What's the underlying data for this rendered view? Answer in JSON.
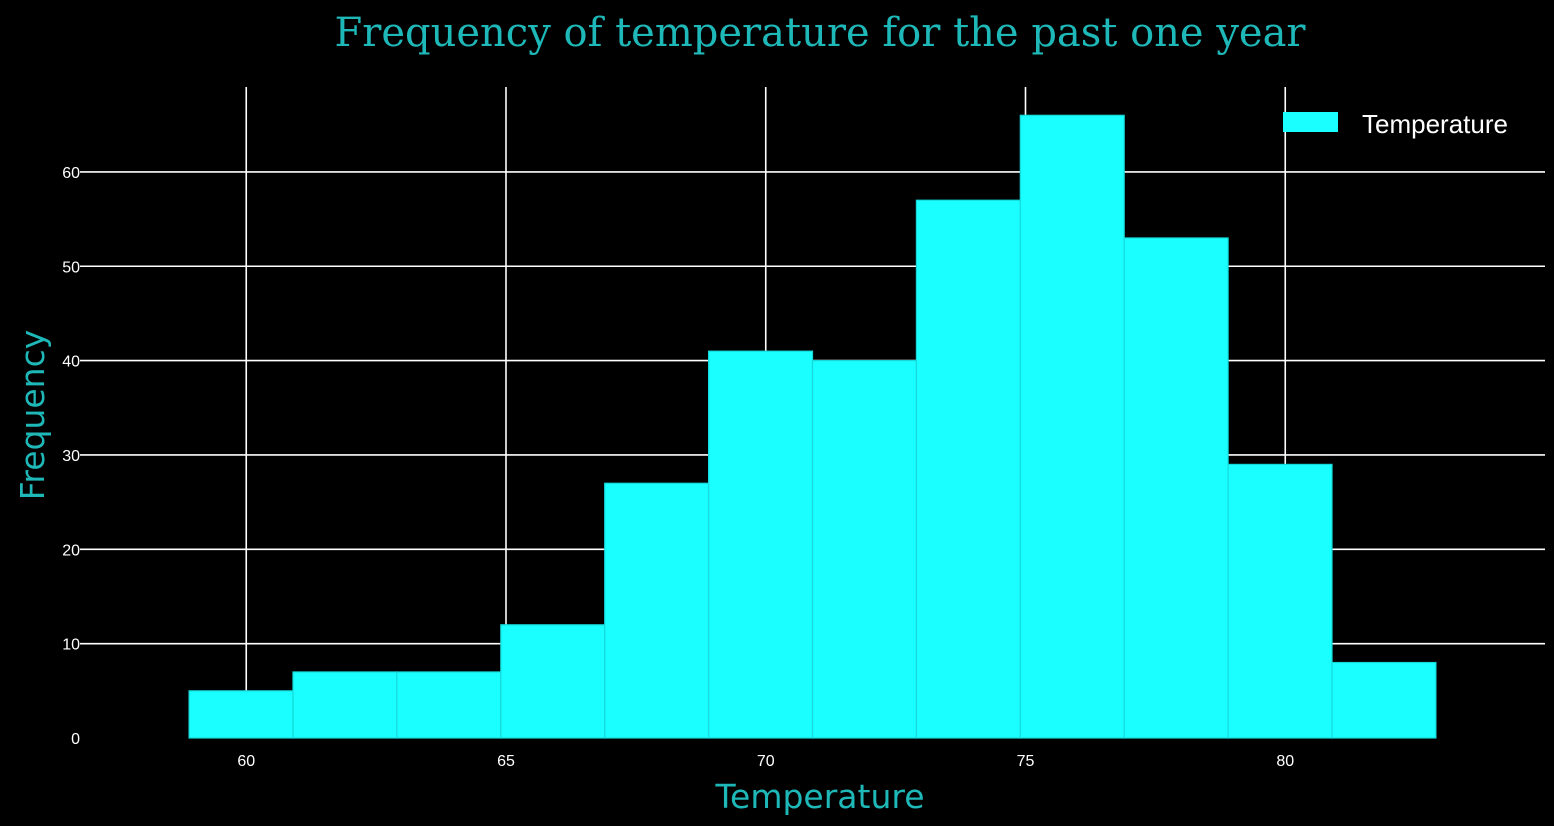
{
  "chart_data": {
    "type": "bar",
    "title": "Frequency of temperature for the past one year",
    "xlabel": "Temperature",
    "ylabel": "Frequency",
    "bin_edges": [
      58.9,
      60.9,
      62.9,
      64.9,
      66.9,
      68.9,
      70.9,
      72.9,
      74.9,
      76.9,
      78.9,
      80.9,
      82.9
    ],
    "series": [
      {
        "name": "Temperature",
        "values": [
          5,
          7,
          7,
          12,
          27,
          41,
          40,
          57,
          66,
          53,
          29,
          8
        ],
        "color": "#1affff"
      }
    ],
    "x_ticks": [
      60,
      65,
      70,
      75,
      80
    ],
    "y_ticks": [
      0,
      10,
      20,
      30,
      40,
      50,
      60
    ],
    "xlim": [
      56.8,
      85.0
    ],
    "ylim": [
      0,
      69
    ],
    "grid": true,
    "legend_position": "top-right",
    "background": "#000000",
    "text_color": "#1fb8b8"
  }
}
